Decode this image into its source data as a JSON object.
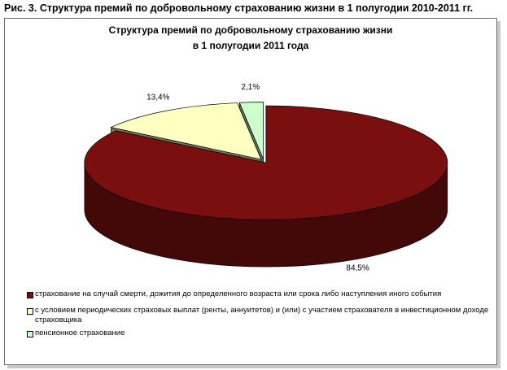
{
  "figure": {
    "caption": "Рис. 3. Структура премий по добровольному страхованию жизни в 1 полугодии 2010-2011 гг."
  },
  "chart_data": {
    "type": "pie",
    "style": "3d-exploded",
    "title_line1": "Структура премий по добровольному страхованию жизни",
    "title_line2": "в 1 полугодии 2011 года",
    "legend_position": "bottom",
    "slices": [
      {
        "label": "страхование на случай смерти, дожития до определенного возраста или срока либо наступления иного события",
        "value": 84.5,
        "value_label": "84,5%",
        "color": "#7a0f0f"
      },
      {
        "label": "с условием периодических страховых выплат (ренты, аннуитетов) и (или) с участием страхователя в инвестиционном доходе страховщика",
        "value": 13.4,
        "value_label": "13,4%",
        "color": "#ffffc2"
      },
      {
        "label": "пенсионное страхование",
        "value": 2.1,
        "value_label": "2,1%",
        "color": "#ccffcc"
      }
    ]
  }
}
